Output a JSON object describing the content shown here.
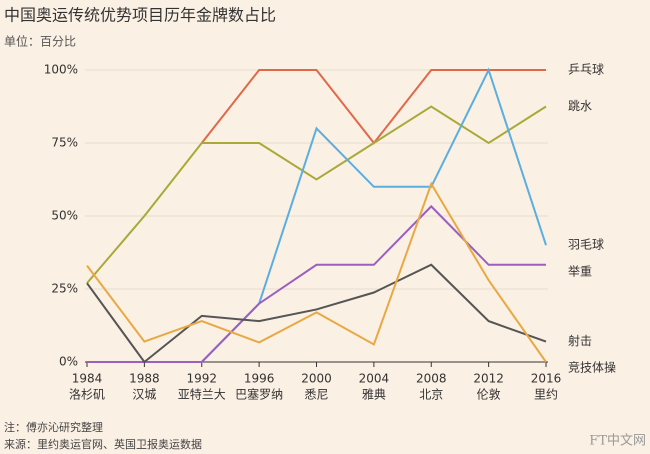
{
  "title": "中国奥运传统优势项目历年金牌数占比",
  "unit": "单位：百分比",
  "note": "注：傅亦沁研究整理",
  "source": "来源：里约奥运官网、英国卫报奥运数据",
  "watermark": "FT中文网",
  "chart_data": {
    "type": "line",
    "categories": [
      "1984",
      "1988",
      "1992",
      "1996",
      "2000",
      "2004",
      "2008",
      "2012",
      "2016"
    ],
    "category_sublabels": [
      "洛杉矶",
      "汉城",
      "亚特兰大",
      "巴塞罗纳",
      "悉尼",
      "雅典",
      "北京",
      "伦敦",
      "里约"
    ],
    "ylim": [
      0,
      100
    ],
    "yticks": [
      {
        "value": 0,
        "label": "0%"
      },
      {
        "value": 25,
        "label": "25%"
      },
      {
        "value": 50,
        "label": "50%"
      },
      {
        "value": 75,
        "label": "75%"
      },
      {
        "value": 100,
        "label": "100%"
      }
    ],
    "grid": true,
    "series": [
      {
        "name": "乒乓球",
        "color": "#e0694a",
        "values": [
          null,
          null,
          75,
          100,
          100,
          75,
          100,
          100,
          100
        ]
      },
      {
        "name": "跳水",
        "color": "#a9a93a",
        "values": [
          27,
          50,
          75,
          75,
          62.5,
          75,
          87.5,
          75,
          87.5
        ]
      },
      {
        "name": "羽毛球",
        "color": "#5aaee0",
        "values": [
          null,
          null,
          0,
          20,
          80,
          60,
          60,
          100,
          40
        ]
      },
      {
        "name": "举重",
        "color": "#9a5fc0",
        "values": [
          0,
          0,
          0,
          20,
          33.3,
          33.3,
          53.3,
          33.3,
          33.3
        ]
      },
      {
        "name": "射击",
        "color": "#555555",
        "values": [
          27,
          0,
          15.8,
          14,
          18,
          23.8,
          33.3,
          14,
          7
        ]
      },
      {
        "name": "竞技体操",
        "color": "#e8a844",
        "values": [
          33,
          7,
          14,
          6.7,
          17,
          6,
          61,
          28,
          0
        ]
      }
    ]
  }
}
